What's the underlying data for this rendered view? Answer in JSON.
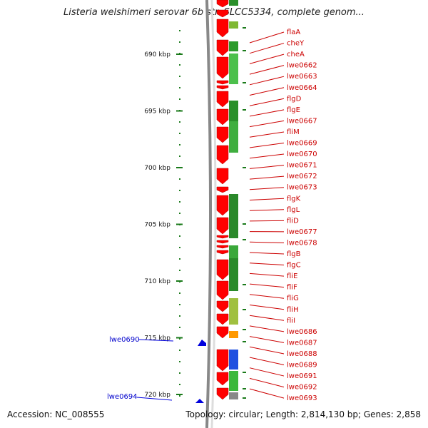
{
  "title": "Listeria welshimeri serovar 6b str. SLCC5334, complete genom...",
  "footer": {
    "accession": "Accession: NC_008555",
    "summary": "Topology: circular; Length: 2,814,130 bp; Genes: 2,858"
  },
  "colors": {
    "gene_fill": "#ff0000",
    "gene_label": "#cc0000",
    "tick": "#1a7a1a",
    "backbone": "#888888",
    "blue_feature": "#0000dd"
  },
  "ticks": [
    {
      "label": "690 kbp",
      "kbp": 690
    },
    {
      "label": "695 kbp",
      "kbp": 695
    },
    {
      "label": "700 kbp",
      "kbp": 700
    },
    {
      "label": "705 kbp",
      "kbp": 705
    },
    {
      "label": "710 kbp",
      "kbp": 710
    },
    {
      "label": "715 kbp",
      "kbp": 715
    },
    {
      "label": "720 kbp",
      "kbp": 720
    }
  ],
  "gene_labels": [
    "flaA",
    "cheY",
    "cheA",
    "lwe0662",
    "lwe0663",
    "lwe0664",
    "flgD",
    "flgE",
    "lwe0667",
    "fliM",
    "lwe0669",
    "lwe0670",
    "lwe0671",
    "lwe0672",
    "lwe0673",
    "flgK",
    "flgL",
    "fliD",
    "lwe0677",
    "lwe0678",
    "flgB",
    "flgC",
    "fliE",
    "fliF",
    "fliG",
    "fliH",
    "fliI",
    "lwe0686",
    "lwe0687",
    "lwe0688",
    "lwe0689",
    "lwe0691",
    "lwe0692",
    "lwe0693"
  ],
  "blue_labels": [
    "lwe0690",
    "lwe0694"
  ]
}
